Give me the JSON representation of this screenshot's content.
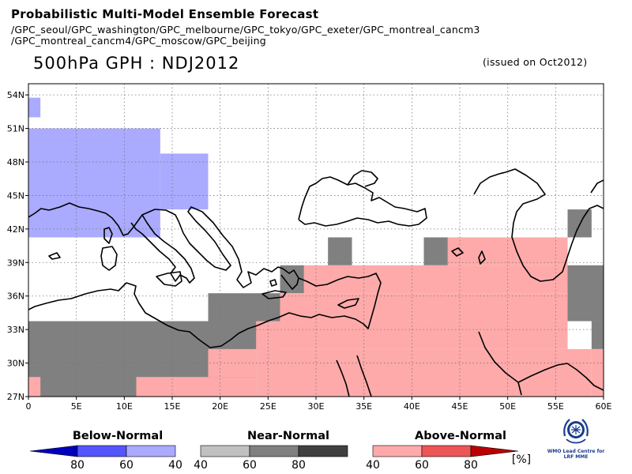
{
  "header": {
    "title": "Probabilistic Multi-Model Ensemble Forecast",
    "models_line1": "/GPC_seoul/GPC_washington/GPC_melbourne/GPC_tokyo/GPC_exeter/GPC_montreal_cancm3",
    "models_line2": "/GPC_montreal_cancm4/GPC_moscow/GPC_beijing",
    "variable": "500hPa GPH : NDJ2012",
    "issued": "(issued on Oct2012)"
  },
  "map": {
    "lon_range": [
      0,
      60
    ],
    "lat_range": [
      27,
      55
    ],
    "lon_ticks": [
      "0",
      "5E",
      "10E",
      "15E",
      "20E",
      "25E",
      "30E",
      "35E",
      "40E",
      "45E",
      "50E",
      "55E",
      "60E"
    ],
    "lat_ticks": [
      "27N",
      "30N",
      "33N",
      "36N",
      "39N",
      "42N",
      "45N",
      "48N",
      "51N",
      "54N"
    ],
    "grid": "dotted",
    "colors": {
      "below_40": "#aaaaff",
      "near_60": "#808080",
      "above_40": "#ffaaaa"
    },
    "cells": [
      {
        "cat": "below",
        "lon": [
          0,
          1.25
        ],
        "lat": [
          52,
          53.75
        ]
      },
      {
        "cat": "below",
        "lon": [
          0,
          13.75
        ],
        "lat": [
          41.25,
          51
        ]
      },
      {
        "cat": "below",
        "lon": [
          13.75,
          18.75
        ],
        "lat": [
          43.75,
          48.75
        ]
      },
      {
        "cat": "near",
        "lon": [
          0,
          23.75
        ],
        "lat": [
          27,
          33.75
        ]
      },
      {
        "cat": "near",
        "lon": [
          18.75,
          26.25
        ],
        "lat": [
          31.25,
          36.25
        ]
      },
      {
        "cat": "near",
        "lon": [
          26.25,
          28.75
        ],
        "lat": [
          36.25,
          38.75
        ]
      },
      {
        "cat": "near",
        "lon": [
          31.25,
          33.75
        ],
        "lat": [
          38.75,
          41.25
        ]
      },
      {
        "cat": "near",
        "lon": [
          41.25,
          43.75
        ],
        "lat": [
          38.75,
          41.25
        ]
      },
      {
        "cat": "near",
        "lon": [
          56.25,
          58.75
        ],
        "lat": [
          41.25,
          43.75
        ]
      },
      {
        "cat": "near",
        "lon": [
          56.25,
          60
        ],
        "lat": [
          33.75,
          38.75
        ]
      },
      {
        "cat": "near",
        "lon": [
          58.75,
          60
        ],
        "lat": [
          31.25,
          33.75
        ]
      },
      {
        "cat": "above",
        "lon": [
          0,
          1.25
        ],
        "lat": [
          27,
          28.75
        ]
      },
      {
        "cat": "above",
        "lon": [
          11.25,
          23.75
        ],
        "lat": [
          27,
          28.75
        ]
      },
      {
        "cat": "above",
        "lon": [
          18.75,
          23.75
        ],
        "lat": [
          28.75,
          31.25
        ]
      },
      {
        "cat": "above",
        "lon": [
          23.75,
          58.75
        ],
        "lat": [
          27,
          31.25
        ]
      },
      {
        "cat": "above",
        "lon": [
          23.75,
          56.25
        ],
        "lat": [
          31.25,
          33.75
        ]
      },
      {
        "cat": "above",
        "lon": [
          26.25,
          56.25
        ],
        "lat": [
          33.75,
          36.25
        ]
      },
      {
        "cat": "above",
        "lon": [
          28.75,
          56.25
        ],
        "lat": [
          36.25,
          38.75
        ]
      },
      {
        "cat": "above",
        "lon": [
          43.75,
          56.25
        ],
        "lat": [
          38.75,
          41.25
        ]
      },
      {
        "cat": "above",
        "lon": [
          58.75,
          60
        ],
        "lat": [
          27,
          31.25
        ]
      }
    ]
  },
  "legend": {
    "unit": "[%]",
    "groups": [
      {
        "title": "Below-Normal",
        "colors": [
          "#0000bb",
          "#5555ff",
          "#aaaaff"
        ],
        "labels": [
          "80",
          "60",
          "40"
        ],
        "arrow": "left"
      },
      {
        "title": "Near-Normal",
        "colors": [
          "#c0c0c0",
          "#808080",
          "#404040"
        ],
        "labels": [
          "40",
          "60",
          "80"
        ],
        "arrow": "none"
      },
      {
        "title": "Above-Normal",
        "colors": [
          "#ffaaaa",
          "#ee5555",
          "#bb0000"
        ],
        "labels": [
          "40",
          "60",
          "80"
        ],
        "arrow": "right"
      }
    ]
  },
  "logo": {
    "icon": "wmo-emblem-icon",
    "line1": "WMO Lead Centre for",
    "line2": "LRF MME"
  }
}
